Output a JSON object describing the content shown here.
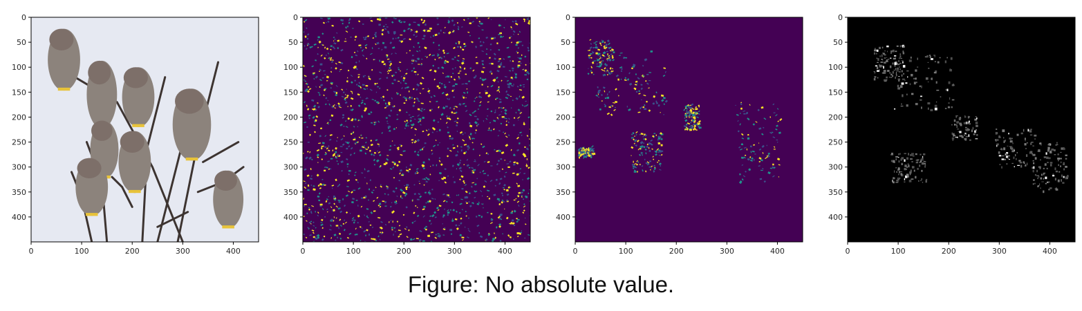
{
  "caption": "Figure: No absolute value.",
  "panels": [
    {
      "name": "panel-original-photo",
      "content": "photo of birds perched on bare branches",
      "cmap": "photo"
    },
    {
      "name": "panel-saliency-raw",
      "content": "dense noisy saliency map",
      "cmap": "viridis"
    },
    {
      "name": "panel-saliency-thresholded",
      "content": "sparse saliency highlights",
      "cmap": "viridis"
    },
    {
      "name": "panel-masked-image",
      "content": "image masked by saliency on black",
      "cmap": "gray"
    }
  ],
  "axes": {
    "x_ticks": [
      "0",
      "100",
      "200",
      "300",
      "400"
    ],
    "y_ticks": [
      "0",
      "50",
      "100",
      "150",
      "200",
      "250",
      "300",
      "350",
      "400"
    ],
    "extent": [
      0,
      450
    ]
  },
  "colors": {
    "viridis_dark": "#440154",
    "viridis_mid": "#21918c",
    "viridis_light": "#fde725",
    "sky": "#e6e9f2",
    "bird": "#8c837c",
    "branch": "#3d3431",
    "beak_yellow": "#e8c33a"
  }
}
